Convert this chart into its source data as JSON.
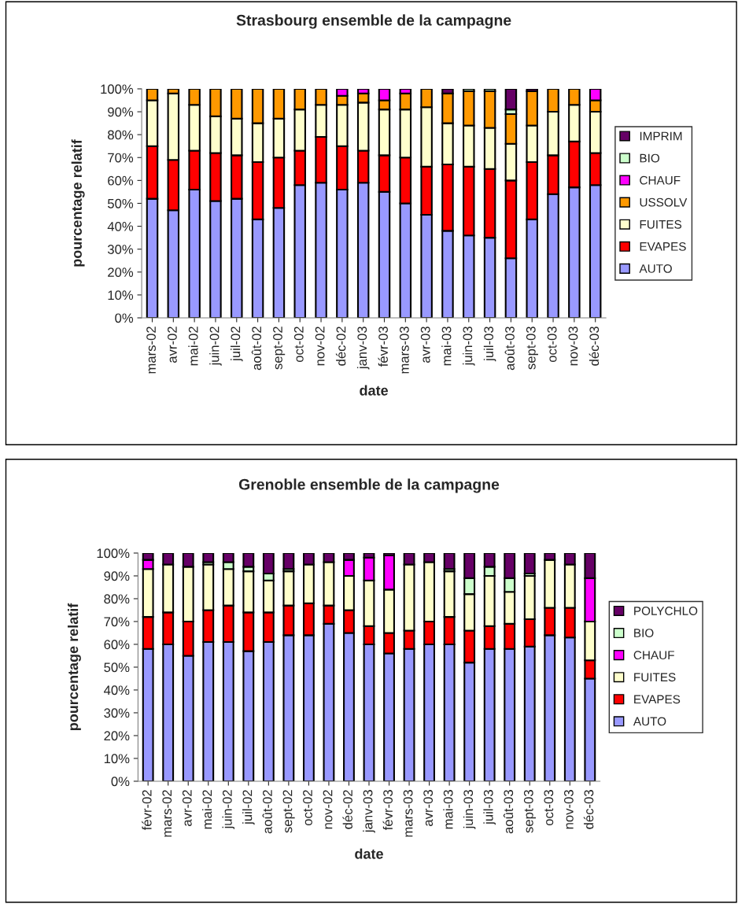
{
  "chart_data": [
    {
      "type": "bar",
      "title": "Strasbourg ensemble de la campagne",
      "xlabel": "date",
      "ylabel": "pourcentage relatif",
      "stacked": true,
      "legend": "right",
      "grid": false,
      "categories": [
        "mars-02",
        "avr-02",
        "mai-02",
        "juin-02",
        "juil-02",
        "août-02",
        "sept-02",
        "oct-02",
        "nov-02",
        "déc-02",
        "janv-03",
        "févr-03",
        "mars-03",
        "avr-03",
        "mai-03",
        "juin-03",
        "juil-03",
        "août-03",
        "sept-03",
        "oct-03",
        "nov-03",
        "déc-03"
      ],
      "ylim": [
        0,
        100
      ],
      "yticks": [
        {
          "value": 0,
          "label": "0%"
        },
        {
          "value": 10,
          "label": "10%"
        },
        {
          "value": 20,
          "label": "20%"
        },
        {
          "value": 30,
          "label": "30%"
        },
        {
          "value": 40,
          "label": "40%"
        },
        {
          "value": 50,
          "label": "50%"
        },
        {
          "value": 60,
          "label": "60%"
        },
        {
          "value": 70,
          "label": "70%"
        },
        {
          "value": 80,
          "label": "80%"
        },
        {
          "value": 90,
          "label": "90%"
        },
        {
          "value": 100,
          "label": "100%"
        }
      ],
      "series": [
        {
          "name": "AUTO",
          "color": "#9999ff",
          "values": [
            52,
            47,
            56,
            51,
            52,
            43,
            48,
            58,
            59,
            56,
            59,
            55,
            50,
            45,
            38,
            36,
            35,
            26,
            43,
            54,
            57,
            58
          ]
        },
        {
          "name": "EVAPES",
          "color": "#ff0000",
          "values": [
            23,
            22,
            17,
            21,
            19,
            25,
            22,
            15,
            20,
            19,
            14,
            16,
            20,
            21,
            29,
            30,
            30,
            34,
            25,
            17,
            20,
            14
          ]
        },
        {
          "name": "FUITES",
          "color": "#ffffcc",
          "values": [
            20,
            29,
            20,
            16,
            16,
            17,
            17,
            18,
            14,
            18,
            21,
            20,
            21,
            26,
            18,
            18,
            18,
            16,
            16,
            19,
            16,
            18
          ]
        },
        {
          "name": "USSOLV",
          "color": "#ff9900",
          "values": [
            5,
            2,
            7,
            12,
            13,
            15,
            13,
            9,
            7,
            4,
            4,
            4,
            7,
            8,
            13,
            15,
            16,
            13,
            15,
            10,
            7,
            5
          ]
        },
        {
          "name": "CHAUF",
          "color": "#ff00ff",
          "values": [
            0,
            0,
            0,
            0,
            0,
            0,
            0,
            0,
            0,
            3,
            2,
            5,
            2,
            0,
            0,
            0,
            0,
            0,
            0,
            0,
            0,
            5
          ]
        },
        {
          "name": "BIO",
          "color": "#ccffcc",
          "values": [
            0,
            0,
            0,
            0,
            0,
            0,
            0,
            0,
            0,
            0,
            0,
            0,
            0,
            0,
            0,
            1,
            1,
            2,
            0,
            0,
            0,
            0
          ]
        },
        {
          "name": "IMPRIM",
          "color": "#660066",
          "values": [
            0,
            0,
            0,
            0,
            0,
            0,
            0,
            0,
            0,
            0,
            0,
            0,
            0,
            0,
            2,
            0,
            0,
            9,
            1,
            0,
            0,
            0
          ]
        }
      ]
    },
    {
      "type": "bar",
      "title": "Grenoble ensemble de la campagne",
      "xlabel": "date",
      "ylabel": "pourcentage relatif",
      "stacked": true,
      "legend": "right",
      "grid": false,
      "categories": [
        "févr-02",
        "mars-02",
        "avr-02",
        "mai-02",
        "juin-02",
        "juil-02",
        "août-02",
        "sept-02",
        "oct-02",
        "nov-02",
        "déc-02",
        "janv-03",
        "févr-03",
        "mars-03",
        "avr-03",
        "mai-03",
        "juin-03",
        "juil-03",
        "août-03",
        "sept-03",
        "oct-03",
        "nov-03",
        "déc-03"
      ],
      "ylim": [
        0,
        100
      ],
      "yticks": [
        {
          "value": 0,
          "label": "0%"
        },
        {
          "value": 10,
          "label": "10%"
        },
        {
          "value": 20,
          "label": "20%"
        },
        {
          "value": 30,
          "label": "30%"
        },
        {
          "value": 40,
          "label": "40%"
        },
        {
          "value": 50,
          "label": "50%"
        },
        {
          "value": 60,
          "label": "60%"
        },
        {
          "value": 70,
          "label": "70%"
        },
        {
          "value": 80,
          "label": "80%"
        },
        {
          "value": 90,
          "label": "90%"
        },
        {
          "value": 100,
          "label": "100%"
        }
      ],
      "series": [
        {
          "name": "AUTO",
          "color": "#9999ff",
          "values": [
            58,
            60,
            55,
            61,
            61,
            57,
            61,
            64,
            64,
            69,
            65,
            60,
            56,
            58,
            60,
            60,
            52,
            58,
            58,
            59,
            64,
            63,
            45
          ]
        },
        {
          "name": "EVAPES",
          "color": "#ff0000",
          "values": [
            14,
            14,
            15,
            14,
            16,
            17,
            13,
            13,
            14,
            8,
            10,
            8,
            9,
            8,
            10,
            12,
            14,
            10,
            11,
            12,
            12,
            13,
            8
          ]
        },
        {
          "name": "FUITES",
          "color": "#ffffcc",
          "values": [
            21,
            21,
            24,
            20,
            16,
            18,
            14,
            15,
            17,
            19,
            15,
            20,
            19,
            29,
            26,
            20,
            16,
            22,
            14,
            19,
            21,
            19,
            17
          ]
        },
        {
          "name": "CHAUF",
          "color": "#ff00ff",
          "values": [
            4,
            0,
            0,
            0,
            0,
            0,
            0,
            0,
            0,
            0,
            7,
            10,
            15,
            0,
            0,
            0,
            0,
            0,
            0,
            0,
            0,
            0,
            19
          ]
        },
        {
          "name": "BIO",
          "color": "#ccffcc",
          "values": [
            0,
            0,
            0,
            1,
            3,
            2,
            3,
            1,
            0,
            0,
            0,
            0,
            0,
            0,
            0,
            1,
            7,
            4,
            6,
            1,
            0,
            0,
            0
          ]
        },
        {
          "name": "POLYCHLO",
          "color": "#660066",
          "values": [
            3,
            5,
            6,
            4,
            4,
            6,
            9,
            7,
            5,
            4,
            3,
            2,
            1,
            5,
            4,
            7,
            11,
            6,
            11,
            9,
            3,
            5,
            11
          ]
        }
      ]
    }
  ]
}
